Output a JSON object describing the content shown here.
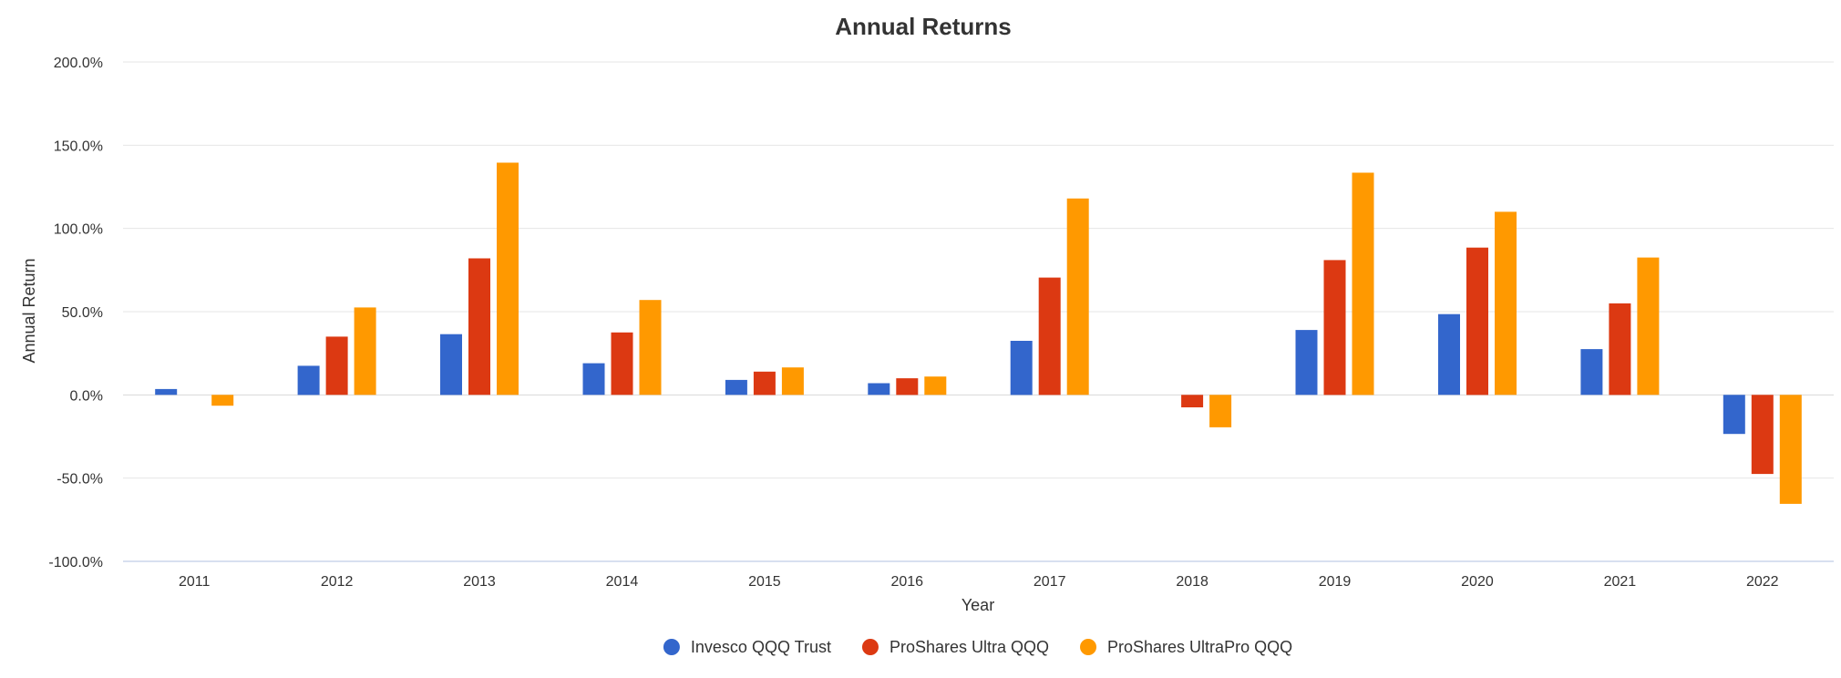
{
  "chart_data": {
    "type": "bar",
    "title": "Annual Returns",
    "xlabel": "Year",
    "ylabel": "Annual Return",
    "ylim": [
      -100,
      200
    ],
    "yticks": [
      -100,
      -50,
      0,
      50,
      100,
      150,
      200
    ],
    "ytick_labels": [
      "-100.0%",
      "-50.0%",
      "0.0%",
      "50.0%",
      "100.0%",
      "150.0%",
      "200.0%"
    ],
    "grid": true,
    "legend_position": "bottom-center",
    "categories": [
      "2011",
      "2012",
      "2013",
      "2014",
      "2015",
      "2016",
      "2017",
      "2018",
      "2019",
      "2020",
      "2021",
      "2022"
    ],
    "series": [
      {
        "name": "Invesco QQQ Trust",
        "color": "#3366cc",
        "values": [
          3.5,
          17.5,
          36.5,
          19.0,
          9.0,
          7.0,
          32.5,
          null,
          39.0,
          48.5,
          27.5,
          -23.5
        ]
      },
      {
        "name": "ProShares Ultra QQQ",
        "color": "#dc3912",
        "values": [
          null,
          35.0,
          82.0,
          37.5,
          14.0,
          10.0,
          70.5,
          -7.5,
          81.0,
          88.5,
          55.0,
          -47.5
        ]
      },
      {
        "name": "ProShares UltraPro QQQ",
        "color": "#ff9900",
        "values": [
          -6.5,
          52.5,
          139.5,
          57.0,
          16.5,
          11.0,
          118.0,
          -19.5,
          133.5,
          110.0,
          82.5,
          -65.5
        ]
      }
    ]
  }
}
